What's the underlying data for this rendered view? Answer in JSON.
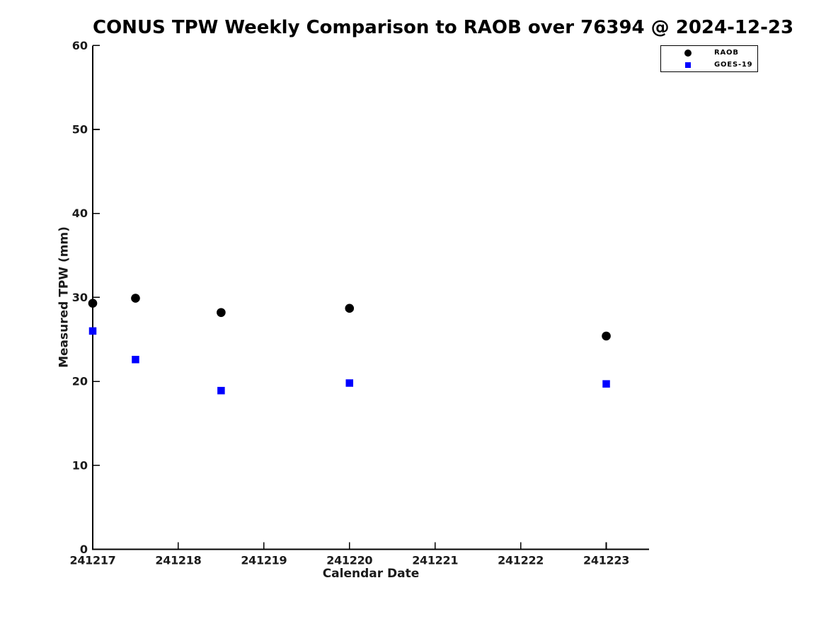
{
  "chart_data": {
    "type": "scatter",
    "title": "CONUS TPW Weekly Comparison to RAOB over 76394 @ 2024-12-23",
    "xlabel": "Calendar Date",
    "ylabel": "Measured TPW (mm)",
    "xlim": [
      241217,
      241223.5
    ],
    "ylim": [
      0,
      60
    ],
    "x_ticks": [
      241217,
      241218,
      241219,
      241220,
      241221,
      241222,
      241223
    ],
    "y_ticks": [
      0,
      10,
      20,
      30,
      40,
      50,
      60
    ],
    "grid": false,
    "legend_position": "top-right",
    "series": [
      {
        "name": "RAOB",
        "marker": "circle",
        "color": "#000000",
        "x": [
          241217.0,
          241217.5,
          241218.5,
          241220.0,
          241223.0
        ],
        "y": [
          29.3,
          29.9,
          28.2,
          28.7,
          25.4
        ]
      },
      {
        "name": "GOES-19",
        "marker": "square",
        "color": "#0000ff",
        "x": [
          241217.0,
          241217.5,
          241218.5,
          241220.0,
          241223.0
        ],
        "y": [
          26.0,
          22.6,
          18.9,
          19.8,
          19.7
        ]
      }
    ]
  },
  "colors": {
    "background": "#ffffff",
    "axis": "#000000",
    "tick_label": "#1a1a1a",
    "raob": "#000000",
    "goes19": "#0000ff"
  }
}
